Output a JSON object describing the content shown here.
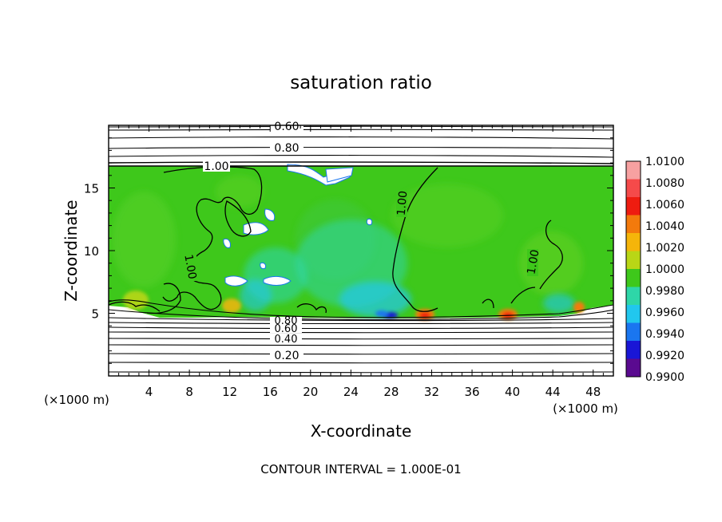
{
  "chart_data": {
    "type": "heatmap",
    "title": "saturation ratio",
    "xlabel": "X-coordinate",
    "ylabel": "Z-coordinate",
    "x_unit": "(×1000 m)",
    "z_unit": "(×1000 m)",
    "xlim": [
      0,
      50
    ],
    "ylim": [
      0,
      20
    ],
    "x_ticks": [
      "4",
      "8",
      "12",
      "16",
      "20",
      "24",
      "28",
      "32",
      "36",
      "40",
      "44",
      "48"
    ],
    "y_ticks": [
      "5",
      "10",
      "15"
    ],
    "contour_labels": [
      "0.60",
      "0.80",
      "1.00",
      "1.00",
      "1.00",
      "1.00",
      "0.80",
      "0.60",
      "0.40",
      "0.20"
    ],
    "footer": "CONTOUR INTERVAL = 1.000E-01",
    "colorbar": {
      "min": 0.99,
      "max": 1.01,
      "labels": [
        "1.0100",
        "1.0080",
        "1.0060",
        "1.0040",
        "1.0020",
        "1.0000",
        "0.9980",
        "0.9960",
        "0.9940",
        "0.9920",
        "0.9900"
      ],
      "colors": [
        "#f7a1a1",
        "#f54a4a",
        "#ee1c10",
        "#f37a0c",
        "#f5b50a",
        "#b9d616",
        "#3ec81b",
        "#2ed6a8",
        "#21c7ee",
        "#1a76f0",
        "#1916d6",
        "#5a0a90"
      ]
    },
    "field": {
      "cloud_base_km": 5,
      "cloud_top_km": 16.5,
      "dominant_value": 1.0005,
      "hotspots": [
        {
          "x": 5,
          "z": 5.4,
          "value": 1.003
        },
        {
          "x": 12.5,
          "z": 5.3,
          "value": 1.003
        },
        {
          "x": 31.5,
          "z": 5.1,
          "value": 1.006
        },
        {
          "x": 39.5,
          "z": 5.1,
          "value": 1.006
        },
        {
          "x": 46.5,
          "z": 5.1,
          "value": 1.007
        }
      ],
      "coldspots": [
        {
          "x": 15,
          "z": 8,
          "value": 0.996
        },
        {
          "x": 27.5,
          "z": 5.1,
          "value": 0.992
        },
        {
          "x": 20,
          "z": 12,
          "value": 0.9975
        }
      ]
    }
  }
}
